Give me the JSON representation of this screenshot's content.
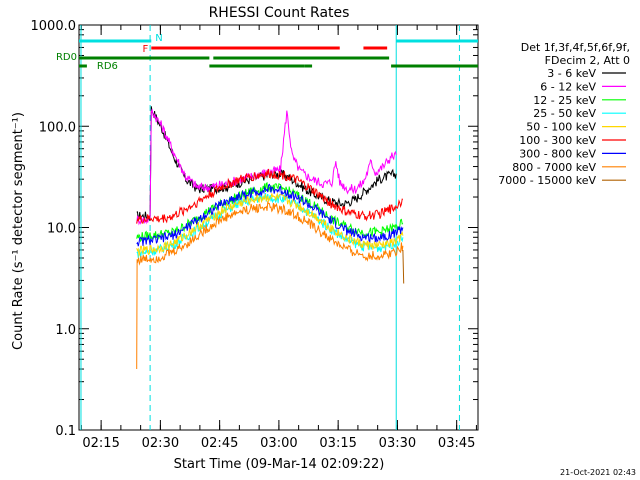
{
  "chart_data": {
    "type": "line",
    "title": "RHESSI Count Rates",
    "xlabel": "Start Time (09-Mar-14 02:09:22)",
    "ylabel": "Count Rate (s⁻¹ detector segment⁻¹)",
    "yscale": "log",
    "ylim": [
      0.1,
      1000
    ],
    "y_ticks": [
      "0.1",
      "1.0",
      "10.0",
      "100.0",
      "1000.0"
    ],
    "x_unit": "minutes since 02:09:22",
    "xlim": [
      0,
      101
    ],
    "x_ticks": [
      {
        "label": "02:15",
        "x": 5.6
      },
      {
        "label": "02:30",
        "x": 20.6
      },
      {
        "label": "02:45",
        "x": 35.6
      },
      {
        "label": "03:00",
        "x": 50.6
      },
      {
        "label": "03:15",
        "x": 65.6
      },
      {
        "label": "03:30",
        "x": 80.6
      },
      {
        "label": "03:45",
        "x": 95.6
      }
    ],
    "legend_header": [
      "Det 1f,3f,4f,5f,6f,9f,",
      "FDecim 2, Att 0"
    ],
    "series": [
      {
        "name": "3 - 6 keV",
        "color": "#000000",
        "points": [
          [
            14.6,
            13
          ],
          [
            18.0,
            13
          ],
          [
            18.3,
            150
          ],
          [
            21,
            95
          ],
          [
            24,
            50
          ],
          [
            27,
            30
          ],
          [
            30,
            24
          ],
          [
            33,
            24
          ],
          [
            37,
            25
          ],
          [
            41,
            28
          ],
          [
            45,
            31
          ],
          [
            49,
            34
          ],
          [
            52,
            33
          ],
          [
            55,
            28
          ],
          [
            58,
            23
          ],
          [
            61,
            20
          ],
          [
            64,
            18
          ],
          [
            67,
            17
          ],
          [
            70,
            19
          ],
          [
            73,
            24
          ],
          [
            76,
            30
          ],
          [
            79,
            33
          ],
          [
            80.3,
            34
          ]
        ]
      },
      {
        "name": "6 - 12 keV",
        "color": "#ff00ff",
        "points": [
          [
            14.6,
            12
          ],
          [
            18.0,
            12
          ],
          [
            18.3,
            145
          ],
          [
            21,
            100
          ],
          [
            24,
            55
          ],
          [
            27,
            32
          ],
          [
            30,
            25
          ],
          [
            33,
            25
          ],
          [
            37,
            27
          ],
          [
            41,
            30
          ],
          [
            45,
            33
          ],
          [
            49,
            36
          ],
          [
            51,
            37
          ],
          [
            52.6,
            140
          ],
          [
            54,
            50
          ],
          [
            56,
            36
          ],
          [
            59,
            30
          ],
          [
            62,
            27
          ],
          [
            64,
            28
          ],
          [
            65,
            45
          ],
          [
            66,
            28
          ],
          [
            68,
            24
          ],
          [
            70,
            24
          ],
          [
            72,
            28
          ],
          [
            74,
            45
          ],
          [
            75,
            35
          ],
          [
            77,
            40
          ],
          [
            79,
            50
          ],
          [
            80.3,
            52
          ]
        ]
      },
      {
        "name": "12 - 25 keV",
        "color": "#00ff00",
        "points": [
          [
            14.6,
            8
          ],
          [
            20,
            8.5
          ],
          [
            24,
            9
          ],
          [
            28,
            11
          ],
          [
            32,
            14
          ],
          [
            36,
            17
          ],
          [
            40,
            20
          ],
          [
            44,
            23
          ],
          [
            48,
            25
          ],
          [
            52,
            24
          ],
          [
            56,
            20
          ],
          [
            60,
            16
          ],
          [
            64,
            12
          ],
          [
            68,
            10
          ],
          [
            72,
            9
          ],
          [
            76,
            9
          ],
          [
            80,
            10
          ],
          [
            82,
            11
          ]
        ]
      },
      {
        "name": "25 - 50 keV",
        "color": "#00ffff",
        "points": [
          [
            14.6,
            5.5
          ],
          [
            20,
            6
          ],
          [
            24,
            6.8
          ],
          [
            28,
            8.5
          ],
          [
            32,
            11
          ],
          [
            36,
            14
          ],
          [
            40,
            17
          ],
          [
            44,
            19
          ],
          [
            48,
            20
          ],
          [
            52,
            19
          ],
          [
            56,
            16
          ],
          [
            60,
            12.5
          ],
          [
            64,
            9.5
          ],
          [
            68,
            7.5
          ],
          [
            72,
            6.5
          ],
          [
            76,
            6.3
          ],
          [
            80,
            7
          ],
          [
            82,
            8
          ]
        ]
      },
      {
        "name": "50 - 100 keV",
        "color": "#ffd700",
        "points": [
          [
            14.6,
            5.8
          ],
          [
            20,
            6.2
          ],
          [
            24,
            7
          ],
          [
            28,
            9
          ],
          [
            32,
            11.5
          ],
          [
            36,
            14.5
          ],
          [
            40,
            17
          ],
          [
            44,
            19
          ],
          [
            48,
            20
          ],
          [
            52,
            19
          ],
          [
            56,
            16
          ],
          [
            60,
            12.8
          ],
          [
            64,
            9.8
          ],
          [
            68,
            7.8
          ],
          [
            72,
            6.8
          ],
          [
            76,
            6.6
          ],
          [
            80,
            7.2
          ],
          [
            82,
            8.3
          ]
        ]
      },
      {
        "name": "100 - 300 keV",
        "color": "#ff0000",
        "points": [
          [
            14.6,
            12
          ],
          [
            17,
            12
          ],
          [
            18.3,
            12.5
          ],
          [
            20,
            12
          ],
          [
            24,
            13
          ],
          [
            28,
            16
          ],
          [
            32,
            20
          ],
          [
            36,
            25
          ],
          [
            40,
            29
          ],
          [
            44,
            32
          ],
          [
            48,
            34
          ],
          [
            52,
            33
          ],
          [
            56,
            28
          ],
          [
            60,
            22
          ],
          [
            64,
            17
          ],
          [
            68,
            14
          ],
          [
            72,
            13
          ],
          [
            76,
            13.5
          ],
          [
            80,
            16
          ],
          [
            82,
            19
          ]
        ]
      },
      {
        "name": "300 - 800 keV",
        "color": "#0000ff",
        "points": [
          [
            14.6,
            7.2
          ],
          [
            20,
            7.6
          ],
          [
            24,
            8.4
          ],
          [
            28,
            10.5
          ],
          [
            32,
            13.5
          ],
          [
            36,
            17
          ],
          [
            40,
            20
          ],
          [
            44,
            22
          ],
          [
            48,
            24
          ],
          [
            52,
            23
          ],
          [
            56,
            19
          ],
          [
            60,
            15
          ],
          [
            64,
            11.5
          ],
          [
            68,
            9.2
          ],
          [
            72,
            8
          ],
          [
            76,
            8
          ],
          [
            80,
            8.8
          ],
          [
            82,
            10
          ]
        ]
      },
      {
        "name": "800 - 7000 keV",
        "color": "#ff8000",
        "points": [
          [
            14.6,
            0.4
          ],
          [
            14.7,
            4.8
          ],
          [
            20,
            5
          ],
          [
            24,
            5.8
          ],
          [
            28,
            7.2
          ],
          [
            32,
            9.5
          ],
          [
            36,
            12
          ],
          [
            40,
            14
          ],
          [
            44,
            15.5
          ],
          [
            48,
            16
          ],
          [
            52,
            15
          ],
          [
            56,
            12.5
          ],
          [
            60,
            9.8
          ],
          [
            64,
            7.5
          ],
          [
            68,
            6
          ],
          [
            72,
            5.3
          ],
          [
            76,
            5.2
          ],
          [
            80,
            5.8
          ],
          [
            82,
            6.6
          ]
        ]
      },
      {
        "name": "7000 - 15000 keV",
        "color": "#b06000",
        "points": [
          [
            82,
            6
          ],
          [
            82.2,
            2.8
          ]
        ]
      }
    ],
    "attenuator_bars": [
      {
        "label": "N",
        "color": "#00e0e0",
        "row": 1,
        "segments": [
          [
            0,
            18.3
          ],
          [
            80.3,
            101
          ]
        ]
      },
      {
        "label": "F",
        "color": "#ff0000",
        "row": 2,
        "segments": [
          [
            18.3,
            66
          ],
          [
            72,
            78
          ]
        ]
      },
      {
        "label": "RD0",
        "color": "#008000",
        "row": 3,
        "segments": [
          [
            0,
            33
          ],
          [
            34,
            78.5
          ]
        ]
      },
      {
        "label": "RD6",
        "color": "#008000",
        "row": 4,
        "segments": [
          [
            0,
            2
          ],
          [
            33,
            57
          ],
          [
            57,
            59
          ],
          [
            79,
            101
          ]
        ]
      }
    ],
    "solid_vlines_x": [
      0.5,
      80.3
    ],
    "dashed_vlines_x": [
      18.0,
      96.3
    ],
    "timestamp": "21-Oct-2021 02:43"
  }
}
